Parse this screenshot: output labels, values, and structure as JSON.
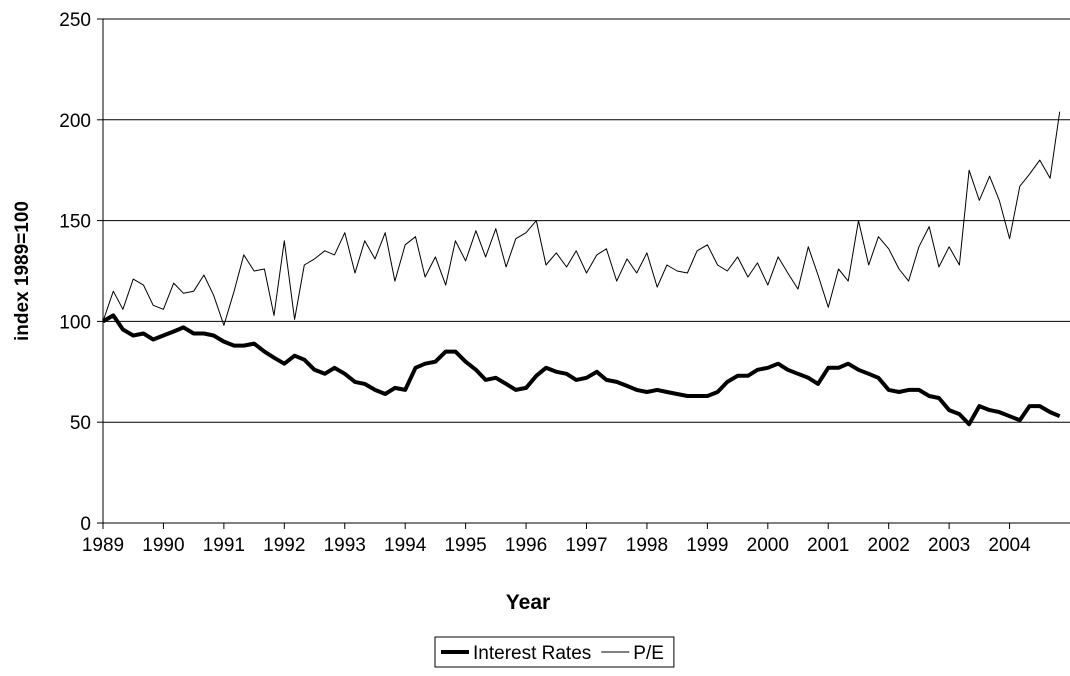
{
  "chart_data": {
    "type": "line",
    "x_label": "Year",
    "y_label": "index 1989=100",
    "x": [
      1989,
      1989.17,
      1989.33,
      1989.5,
      1989.67,
      1989.83,
      1990,
      1990.17,
      1990.33,
      1990.5,
      1990.67,
      1990.83,
      1991,
      1991.17,
      1991.33,
      1991.5,
      1991.67,
      1991.83,
      1992,
      1992.17,
      1992.33,
      1992.5,
      1992.67,
      1992.83,
      1993,
      1993.17,
      1993.33,
      1993.5,
      1993.67,
      1993.83,
      1994,
      1994.17,
      1994.33,
      1994.5,
      1994.67,
      1994.83,
      1995,
      1995.17,
      1995.33,
      1995.5,
      1995.67,
      1995.83,
      1996,
      1996.17,
      1996.33,
      1996.5,
      1996.67,
      1996.83,
      1997,
      1997.17,
      1997.33,
      1997.5,
      1997.67,
      1997.83,
      1998,
      1998.17,
      1998.33,
      1998.5,
      1998.67,
      1998.83,
      1999,
      1999.17,
      1999.33,
      1999.5,
      1999.67,
      1999.83,
      2000,
      2000.17,
      2000.33,
      2000.5,
      2000.67,
      2000.83,
      2001,
      2001.17,
      2001.33,
      2001.5,
      2001.67,
      2001.83,
      2002,
      2002.17,
      2002.33,
      2002.5,
      2002.67,
      2002.83,
      2003,
      2003.17,
      2003.33,
      2003.5,
      2003.67,
      2003.83,
      2004,
      2004.17,
      2004.33,
      2004.5,
      2004.67,
      2004.83
    ],
    "series": [
      {
        "name": "Interest Rates",
        "color": "#000000",
        "stroke_width": 4,
        "values": [
          100,
          103,
          96,
          93,
          94,
          91,
          93,
          95,
          97,
          94,
          94,
          93,
          90,
          88,
          88,
          89,
          85,
          82,
          79,
          83,
          81,
          76,
          74,
          77,
          74,
          70,
          69,
          66,
          64,
          67,
          66,
          77,
          79,
          80,
          85,
          85,
          80,
          76,
          71,
          72,
          69,
          66,
          67,
          73,
          77,
          75,
          74,
          71,
          72,
          75,
          71,
          70,
          68,
          66,
          65,
          66,
          65,
          64,
          63,
          63,
          63,
          65,
          70,
          73,
          73,
          76,
          77,
          79,
          76,
          74,
          72,
          69,
          77,
          77,
          79,
          76,
          74,
          72,
          66,
          65,
          66,
          66,
          63,
          62,
          56,
          54,
          49,
          58,
          56,
          55,
          53,
          51,
          58,
          58,
          55,
          53
        ]
      },
      {
        "name": "P/E",
        "color": "#000000",
        "stroke_width": 1,
        "values": [
          100,
          115,
          106,
          121,
          118,
          108,
          106,
          119,
          114,
          115,
          123,
          113,
          98,
          115,
          133,
          125,
          126,
          103,
          140,
          101,
          128,
          131,
          135,
          133,
          144,
          124,
          140,
          131,
          144,
          120,
          138,
          142,
          122,
          132,
          118,
          140,
          130,
          145,
          132,
          146,
          127,
          141,
          144,
          150,
          128,
          134,
          127,
          135,
          124,
          133,
          136,
          120,
          131,
          124,
          134,
          117,
          128,
          125,
          124,
          135,
          138,
          128,
          125,
          132,
          122,
          129,
          118,
          132,
          124,
          116,
          137,
          123,
          107,
          126,
          120,
          150,
          128,
          142,
          136,
          126,
          120,
          137,
          147,
          127,
          137,
          128,
          175,
          160,
          172,
          160,
          141,
          167,
          173,
          180,
          171,
          204
        ]
      }
    ],
    "xlim": [
      1989,
      2005
    ],
    "xticks": [
      1989,
      1990,
      1991,
      1992,
      1993,
      1994,
      1995,
      1996,
      1997,
      1998,
      1999,
      2000,
      2001,
      2002,
      2003,
      2004
    ],
    "ylim": [
      0,
      250
    ],
    "yticks": [
      0,
      50,
      100,
      150,
      200,
      250
    ],
    "grid": true,
    "legend": "bottom"
  }
}
